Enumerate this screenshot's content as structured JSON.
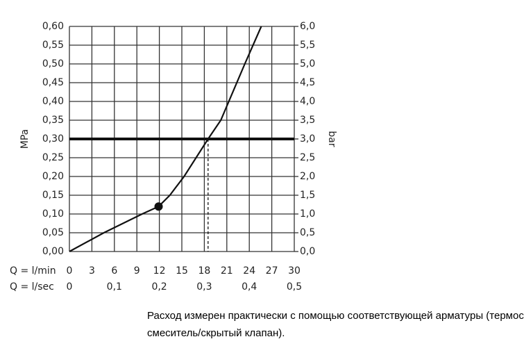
{
  "chart_data": {
    "type": "line",
    "y_label": "MPa",
    "y2_label": "bar",
    "x_row_label": "Q = l/min",
    "x2_row_label": "Q = l/sec",
    "xlim": [
      0,
      30
    ],
    "xticks": [
      0,
      3,
      6,
      9,
      12,
      15,
      18,
      21,
      24,
      27,
      30
    ],
    "x2lim": [
      0,
      0.5
    ],
    "x2ticks": [
      0,
      {
        "value": 0.1,
        "label": "0,1"
      },
      {
        "value": 0.2,
        "label": "0,2"
      },
      {
        "value": 0.3,
        "label": "0,3"
      },
      {
        "value": 0.4,
        "label": "0,4"
      },
      {
        "value": 0.5,
        "label": "0,5"
      }
    ],
    "ylim": [
      0,
      0.6
    ],
    "yticks": [
      {
        "value": 0,
        "label": "0,00"
      },
      {
        "value": 0.05,
        "label": "0,05"
      },
      {
        "value": 0.1,
        "label": "0,10"
      },
      {
        "value": 0.15,
        "label": "0,15"
      },
      {
        "value": 0.2,
        "label": "0,20"
      },
      {
        "value": 0.25,
        "label": "0,25"
      },
      {
        "value": 0.3,
        "label": "0,30"
      },
      {
        "value": 0.35,
        "label": "0,35"
      },
      {
        "value": 0.4,
        "label": "0,40"
      },
      {
        "value": 0.45,
        "label": "0,45"
      },
      {
        "value": 0.5,
        "label": "0,50"
      },
      {
        "value": 0.55,
        "label": "0,55"
      },
      {
        "value": 0.6,
        "label": "0,60"
      }
    ],
    "y2lim": [
      0,
      6
    ],
    "y2ticks": [
      {
        "value": 0,
        "label": "0,0"
      },
      {
        "value": 0.5,
        "label": "0,5"
      },
      {
        "value": 1,
        "label": "1,0"
      },
      {
        "value": 1.5,
        "label": "1,5"
      },
      {
        "value": 2,
        "label": "2,0"
      },
      {
        "value": 2.5,
        "label": "2,5"
      },
      {
        "value": 3,
        "label": "3,0"
      },
      {
        "value": 3.5,
        "label": "3,5"
      },
      {
        "value": 4,
        "label": "4,0"
      },
      {
        "value": 4.5,
        "label": "4,5"
      },
      {
        "value": 5,
        "label": "5,0"
      },
      {
        "value": 5.5,
        "label": "5,5"
      },
      {
        "value": 6,
        "label": "6,0"
      }
    ],
    "grid": true,
    "series": [
      {
        "color": "#111111",
        "x": [
          0,
          4.6,
          9.7,
          11.9,
          13.4,
          15.3,
          18.5,
          20.2,
          23.4,
          25.6
        ],
        "values": [
          0,
          0.05,
          0.1,
          0.12,
          0.15,
          0.2,
          0.3,
          0.35,
          0.5,
          0.6
        ]
      }
    ],
    "marker": {
      "x": 11.9,
      "y": 0.12
    },
    "hline": 0.3,
    "reference": {
      "x": 18.5,
      "y": 0.3
    },
    "caption": [
      "Расход измерен практически с помощью соответствующей арматуры (термостат/",
      "смеситель/скрытый клапан)."
    ]
  }
}
